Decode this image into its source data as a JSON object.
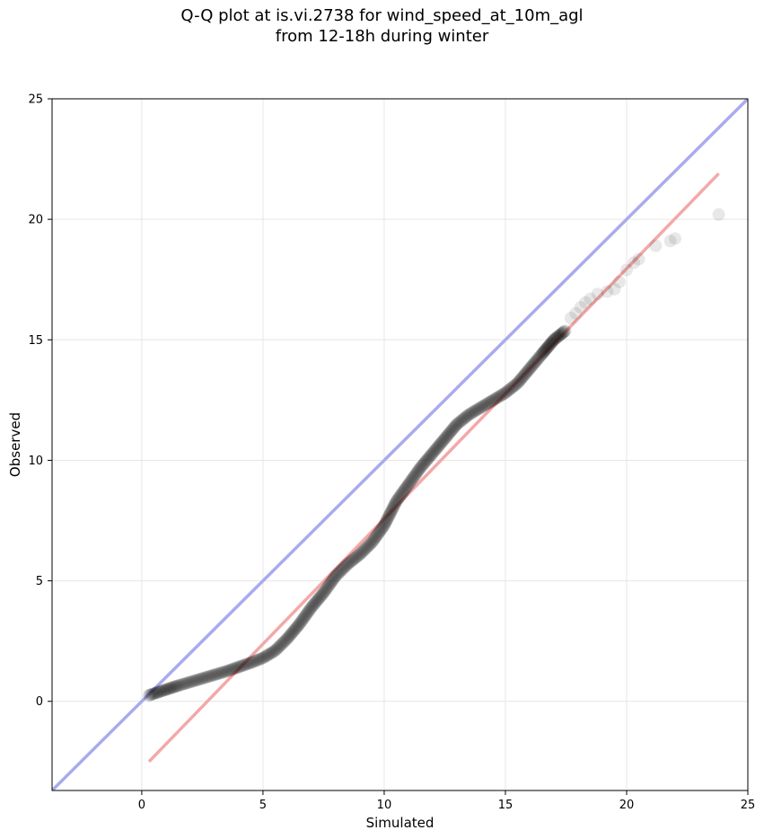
{
  "chart_data": {
    "type": "scatter",
    "title_lines": [
      "Q-Q plot at is.vi.2738 for wind_speed_at_10m_agl",
      "from 12-18h during winter"
    ],
    "xlabel": "Simulated",
    "ylabel": "Observed",
    "xlim": [
      -3.7,
      25
    ],
    "ylim": [
      -3.7,
      25
    ],
    "xticks": [
      0,
      5,
      10,
      15,
      20,
      25
    ],
    "yticks": [
      0,
      5,
      10,
      15,
      20,
      25
    ],
    "grid": true,
    "identity_line": {
      "from": [
        -3.7,
        -3.7
      ],
      "to": [
        25,
        25
      ],
      "color": "#aaaaee"
    },
    "fit_line": {
      "from": [
        0.3,
        -2.5
      ],
      "to": [
        23.8,
        21.9
      ],
      "color": "#f4a8a8"
    },
    "point_color": "#000000",
    "quantile_curve": [
      [
        0.3,
        0.25
      ],
      [
        0.8,
        0.42
      ],
      [
        1.5,
        0.65
      ],
      [
        2.5,
        0.95
      ],
      [
        3.5,
        1.25
      ],
      [
        4.5,
        1.6
      ],
      [
        5.0,
        1.8
      ],
      [
        5.5,
        2.1
      ],
      [
        6.0,
        2.6
      ],
      [
        6.5,
        3.2
      ],
      [
        7.0,
        3.9
      ],
      [
        7.5,
        4.5
      ],
      [
        8.0,
        5.2
      ],
      [
        8.5,
        5.7
      ],
      [
        9.0,
        6.1
      ],
      [
        9.5,
        6.6
      ],
      [
        10.0,
        7.3
      ],
      [
        10.5,
        8.3
      ],
      [
        11.0,
        9.0
      ],
      [
        11.5,
        9.7
      ],
      [
        12.0,
        10.3
      ],
      [
        12.5,
        10.9
      ],
      [
        13.0,
        11.5
      ],
      [
        13.5,
        11.9
      ],
      [
        14.0,
        12.2
      ],
      [
        14.5,
        12.5
      ],
      [
        15.0,
        12.8
      ],
      [
        15.5,
        13.2
      ],
      [
        16.0,
        13.8
      ],
      [
        16.5,
        14.4
      ],
      [
        17.0,
        15.0
      ],
      [
        17.5,
        15.4
      ]
    ],
    "outliers": [
      [
        17.7,
        15.9
      ],
      [
        17.9,
        16.1
      ],
      [
        18.1,
        16.35
      ],
      [
        18.3,
        16.55
      ],
      [
        18.5,
        16.7
      ],
      [
        18.8,
        16.9
      ],
      [
        19.2,
        17.0
      ],
      [
        19.5,
        17.1
      ],
      [
        19.7,
        17.4
      ],
      [
        20.0,
        17.9
      ],
      [
        20.3,
        18.2
      ],
      [
        20.5,
        18.35
      ],
      [
        21.2,
        18.9
      ],
      [
        21.8,
        19.1
      ],
      [
        22.0,
        19.2
      ],
      [
        23.8,
        20.2
      ]
    ]
  }
}
